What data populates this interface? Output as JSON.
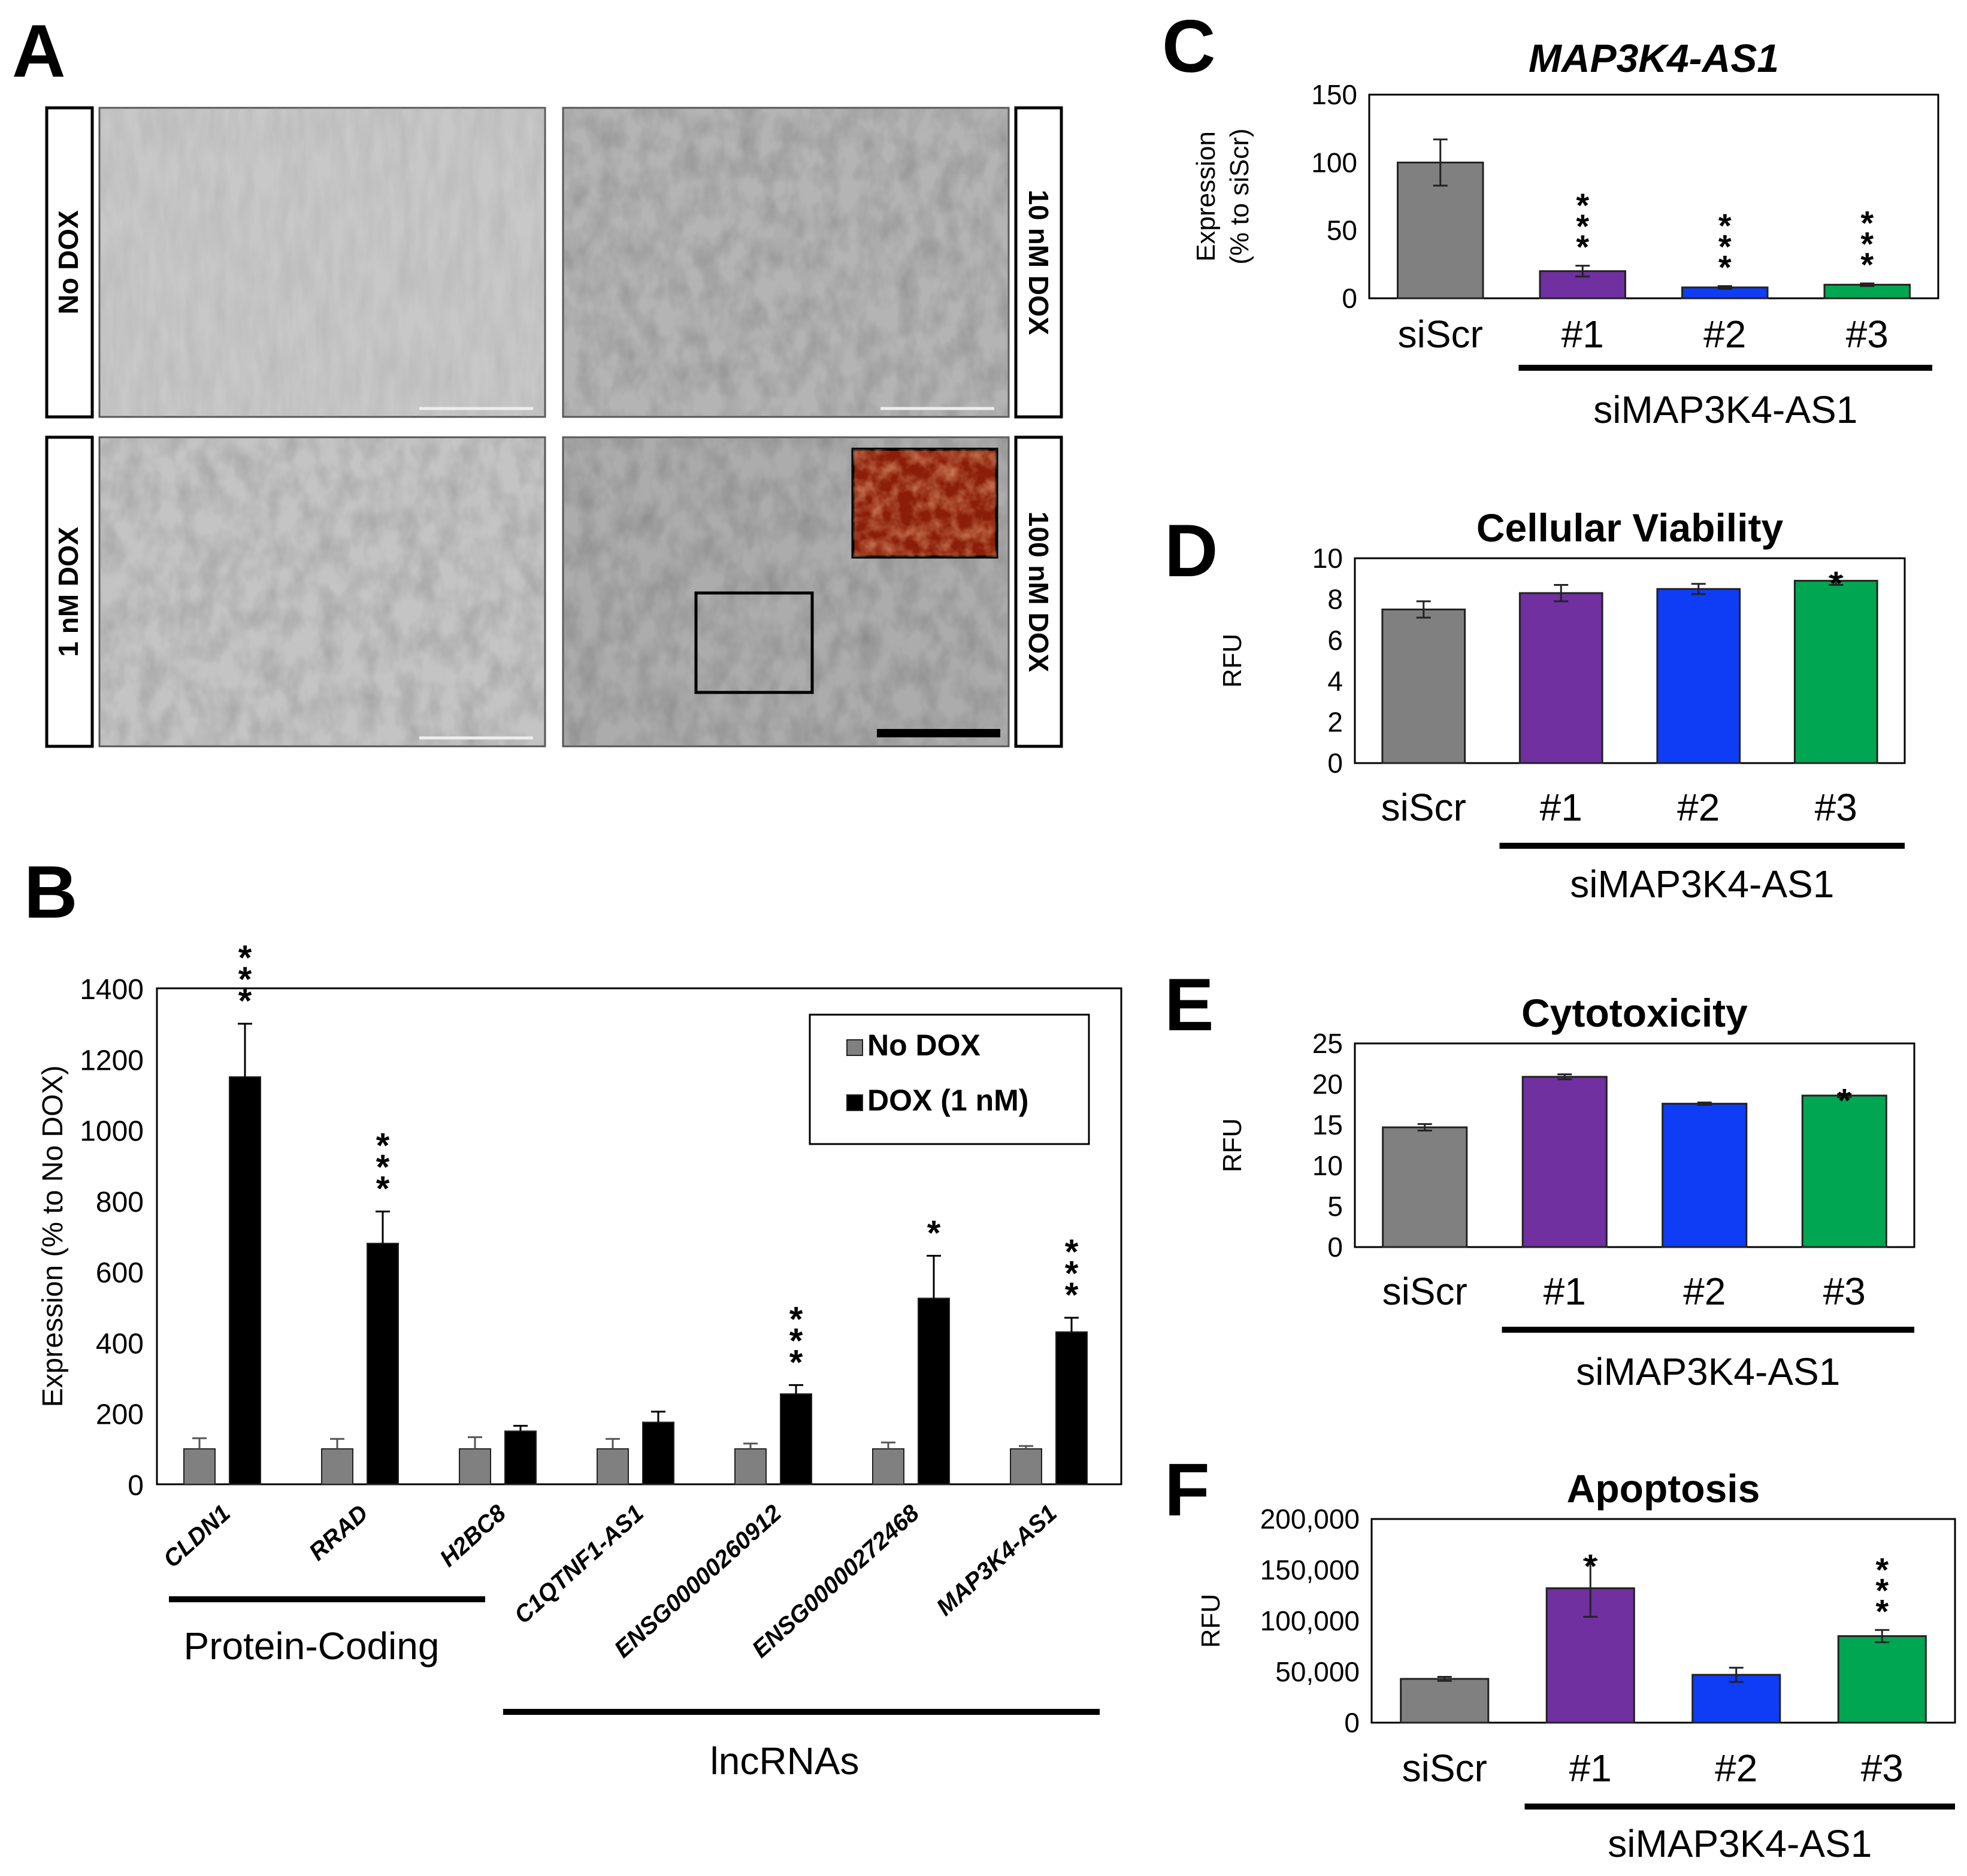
{
  "panelA": {
    "letter": "A",
    "labels": {
      "tl": "No DOX",
      "tr": "10 nM DOX",
      "bl": "1 nM DOX",
      "br": "100 nM DOX"
    },
    "colors": {
      "micro": "#c2c2c2",
      "inset": "#b0341a"
    }
  },
  "chart_data": [
    {
      "panel": "B",
      "type": "bar",
      "ylabel": "Expression (% to No DOX)",
      "ylim": [
        0,
        1400
      ],
      "yticks": [
        0,
        200,
        400,
        600,
        800,
        1000,
        1200,
        1400
      ],
      "categories": [
        "CLDN1",
        "RRAD",
        "H2BC8",
        "C1QTNF1-AS1",
        "ENSG00000260912",
        "ENSG00000272468",
        "MAP3K4-AS1"
      ],
      "series": [
        {
          "name": "No DOX",
          "color": "#808080",
          "values": [
            100,
            100,
            100,
            100,
            100,
            100,
            100
          ],
          "errors": [
            30,
            28,
            33,
            28,
            15,
            18,
            8
          ]
        },
        {
          "name": "DOX (1 nM)",
          "color": "#000000",
          "values": [
            1150,
            680,
            150,
            175,
            255,
            525,
            430
          ],
          "errors": [
            150,
            90,
            15,
            30,
            25,
            120,
            40
          ]
        }
      ],
      "significance": [
        "***",
        "***",
        "",
        "",
        "***",
        "*",
        "***"
      ],
      "legend": {
        "title": "",
        "position": "top-right"
      },
      "groups": [
        {
          "label": "Protein-Coding"
        },
        {
          "label": "lncRNAs"
        }
      ]
    },
    {
      "panel": "C",
      "type": "bar",
      "title": "MAP3K4-AS1",
      "ylabel": "Expression (% to siScr)",
      "ylabel_lines": [
        "Expression",
        "(% to siScr)"
      ],
      "ylim": [
        0,
        150
      ],
      "yticks": [
        0,
        50,
        100,
        150
      ],
      "ytick_labels": [
        "0",
        "50",
        "100",
        "150"
      ],
      "categories": [
        "siScr",
        "#1",
        "#2",
        "#3"
      ],
      "values": [
        100,
        20,
        8,
        10
      ],
      "errors": [
        17,
        4,
        1,
        1
      ],
      "colors": [
        "#808080",
        "#7030a0",
        "#0f3cf5",
        "#00a651"
      ],
      "significance": [
        "",
        "***",
        "***",
        "***"
      ],
      "group_label": "siMAP3K4-AS1"
    },
    {
      "panel": "D",
      "type": "bar",
      "title": "Cellular Viability",
      "ylabel": "RFU",
      "ylim": [
        0,
        10
      ],
      "yticks": [
        0,
        2,
        4,
        6,
        8,
        10
      ],
      "ytick_labels": [
        "0",
        "2",
        "4",
        "6",
        "8",
        "10"
      ],
      "categories": [
        "siScr",
        "#1",
        "#2",
        "#3"
      ],
      "values": [
        7.5,
        8.3,
        8.5,
        8.9
      ],
      "errors": [
        0.4,
        0.4,
        0.25,
        0.2
      ],
      "colors": [
        "#808080",
        "#7030a0",
        "#0f3cf5",
        "#00a651"
      ],
      "significance": [
        "",
        "",
        "",
        "*"
      ],
      "group_label": "siMAP3K4-AS1"
    },
    {
      "panel": "E",
      "type": "bar",
      "title": "Cytotoxicity",
      "ylabel": "RFU",
      "ylim": [
        0,
        25
      ],
      "yticks": [
        0,
        5,
        10,
        15,
        20,
        25
      ],
      "ytick_labels": [
        "0",
        "5",
        "10",
        "15",
        "20",
        "25"
      ],
      "categories": [
        "siScr",
        "#1",
        "#2",
        "#3"
      ],
      "values": [
        14.7,
        20.9,
        17.6,
        18.6
      ],
      "errors": [
        0.4,
        0.3,
        0.15,
        0.2
      ],
      "colors": [
        "#808080",
        "#7030a0",
        "#0f3cf5",
        "#00a651"
      ],
      "significance": [
        "",
        "",
        "",
        "*"
      ],
      "group_label": "siMAP3K4-AS1"
    },
    {
      "panel": "F",
      "type": "bar",
      "title": "Apoptosis",
      "ylabel": "RFU",
      "ylim": [
        0,
        200000
      ],
      "yticks": [
        0,
        50000,
        100000,
        150000,
        200000
      ],
      "ytick_labels": [
        "0",
        "50,000",
        "100,000",
        "150,000",
        "200,000"
      ],
      "categories": [
        "siScr",
        "#1",
        "#2",
        "#3"
      ],
      "values": [
        43000,
        132000,
        47000,
        85000
      ],
      "errors": [
        2000,
        28000,
        7000,
        6000
      ],
      "colors": [
        "#808080",
        "#7030a0",
        "#0f3cf5",
        "#00a651"
      ],
      "significance": [
        "",
        "*",
        "",
        "***"
      ],
      "group_label": "siMAP3K4-AS1"
    }
  ]
}
